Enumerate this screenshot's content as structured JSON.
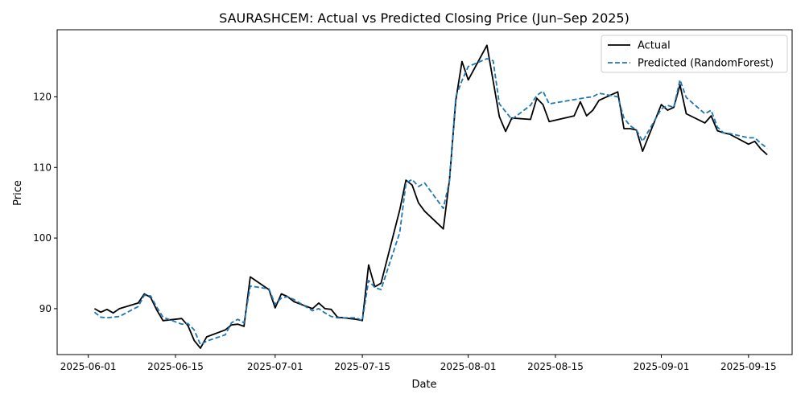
{
  "chart_data": {
    "type": "line",
    "title": "SAURASHCEM: Actual vs Predicted Closing Price (Jun–Sep 2025)",
    "xlabel": "Date",
    "ylabel": "Price",
    "xlim": [
      "2025-05-27",
      "2025-09-22"
    ],
    "ylim": [
      83.5,
      129.5
    ],
    "x_ticks": [
      "2025-06-01",
      "2025-06-15",
      "2025-07-01",
      "2025-07-15",
      "2025-08-01",
      "2025-08-15",
      "2025-09-01",
      "2025-09-15"
    ],
    "y_ticks": [
      90,
      100,
      110,
      120
    ],
    "grid": false,
    "legend": "top-right",
    "series": [
      {
        "name": "Actual",
        "color": "#000000",
        "style": "solid",
        "points": [
          [
            "2025-06-02",
            90.0
          ],
          [
            "2025-06-03",
            89.5
          ],
          [
            "2025-06-04",
            89.9
          ],
          [
            "2025-06-05",
            89.4
          ],
          [
            "2025-06-06",
            90.0
          ],
          [
            "2025-06-09",
            90.8
          ],
          [
            "2025-06-10",
            92.1
          ],
          [
            "2025-06-11",
            91.6
          ],
          [
            "2025-06-12",
            89.8
          ],
          [
            "2025-06-13",
            88.3
          ],
          [
            "2025-06-16",
            88.6
          ],
          [
            "2025-06-17",
            87.6
          ],
          [
            "2025-06-18",
            85.5
          ],
          [
            "2025-06-19",
            84.4
          ],
          [
            "2025-06-20",
            86.0
          ],
          [
            "2025-06-23",
            87.0
          ],
          [
            "2025-06-24",
            87.7
          ],
          [
            "2025-06-25",
            87.8
          ],
          [
            "2025-06-26",
            87.5
          ],
          [
            "2025-06-27",
            94.5
          ],
          [
            "2025-06-30",
            92.7
          ],
          [
            "2025-07-01",
            90.1
          ],
          [
            "2025-07-02",
            92.1
          ],
          [
            "2025-07-03",
            91.7
          ],
          [
            "2025-07-04",
            91.0
          ],
          [
            "2025-07-07",
            90.0
          ],
          [
            "2025-07-08",
            90.8
          ],
          [
            "2025-07-09",
            90.0
          ],
          [
            "2025-07-10",
            89.9
          ],
          [
            "2025-07-11",
            88.8
          ],
          [
            "2025-07-14",
            88.5
          ],
          [
            "2025-07-15",
            88.3
          ],
          [
            "2025-07-16",
            96.2
          ],
          [
            "2025-07-17",
            93.1
          ],
          [
            "2025-07-18",
            93.6
          ],
          [
            "2025-07-21",
            104.0
          ],
          [
            "2025-07-22",
            108.2
          ],
          [
            "2025-07-23",
            107.5
          ],
          [
            "2025-07-24",
            105.0
          ],
          [
            "2025-07-25",
            103.8
          ],
          [
            "2025-07-28",
            101.3
          ],
          [
            "2025-07-29",
            108.3
          ],
          [
            "2025-07-30",
            119.5
          ],
          [
            "2025-07-31",
            125.0
          ],
          [
            "2025-08-01",
            122.4
          ],
          [
            "2025-08-04",
            127.3
          ],
          [
            "2025-08-06",
            117.2
          ],
          [
            "2025-08-07",
            115.1
          ],
          [
            "2025-08-08",
            117.0
          ],
          [
            "2025-08-11",
            116.8
          ],
          [
            "2025-08-12",
            119.8
          ],
          [
            "2025-08-13",
            118.9
          ],
          [
            "2025-08-14",
            116.5
          ],
          [
            "2025-08-18",
            117.3
          ],
          [
            "2025-08-19",
            119.3
          ],
          [
            "2025-08-20",
            117.3
          ],
          [
            "2025-08-21",
            118.1
          ],
          [
            "2025-08-22",
            119.5
          ],
          [
            "2025-08-25",
            120.7
          ],
          [
            "2025-08-26",
            115.5
          ],
          [
            "2025-08-27",
            115.5
          ],
          [
            "2025-08-28",
            115.3
          ],
          [
            "2025-08-29",
            112.3
          ],
          [
            "2025-09-01",
            118.9
          ],
          [
            "2025-09-02",
            118.1
          ],
          [
            "2025-09-03",
            118.5
          ],
          [
            "2025-09-04",
            121.7
          ],
          [
            "2025-09-05",
            117.6
          ],
          [
            "2025-09-08",
            116.3
          ],
          [
            "2025-09-09",
            117.3
          ],
          [
            "2025-09-10",
            115.2
          ],
          [
            "2025-09-11",
            114.9
          ],
          [
            "2025-09-12",
            114.7
          ],
          [
            "2025-09-15",
            113.3
          ],
          [
            "2025-09-16",
            113.7
          ],
          [
            "2025-09-17",
            112.6
          ],
          [
            "2025-09-18",
            111.8
          ]
        ]
      },
      {
        "name": "Predicted (RandomForest)",
        "color": "#1f77b4",
        "style": "dashed",
        "points": [
          [
            "2025-06-02",
            89.5
          ],
          [
            "2025-06-03",
            88.8
          ],
          [
            "2025-06-04",
            88.7
          ],
          [
            "2025-06-05",
            88.8
          ],
          [
            "2025-06-06",
            88.9
          ],
          [
            "2025-06-09",
            90.3
          ],
          [
            "2025-06-10",
            91.9
          ],
          [
            "2025-06-11",
            91.8
          ],
          [
            "2025-06-12",
            90.2
          ],
          [
            "2025-06-13",
            88.8
          ],
          [
            "2025-06-16",
            87.8
          ],
          [
            "2025-06-17",
            87.9
          ],
          [
            "2025-06-18",
            87.0
          ],
          [
            "2025-06-19",
            84.9
          ],
          [
            "2025-06-20",
            85.4
          ],
          [
            "2025-06-23",
            86.3
          ],
          [
            "2025-06-24",
            88.0
          ],
          [
            "2025-06-25",
            88.5
          ],
          [
            "2025-06-26",
            88.0
          ],
          [
            "2025-06-27",
            93.2
          ],
          [
            "2025-06-30",
            92.8
          ],
          [
            "2025-07-01",
            90.6
          ],
          [
            "2025-07-02",
            91.5
          ],
          [
            "2025-07-03",
            91.7
          ],
          [
            "2025-07-04",
            91.3
          ],
          [
            "2025-07-07",
            89.7
          ],
          [
            "2025-07-08",
            90.0
          ],
          [
            "2025-07-09",
            89.4
          ],
          [
            "2025-07-10",
            88.9
          ],
          [
            "2025-07-11",
            88.7
          ],
          [
            "2025-07-14",
            88.7
          ],
          [
            "2025-07-15",
            88.3
          ],
          [
            "2025-07-16",
            94.0
          ],
          [
            "2025-07-17",
            93.0
          ],
          [
            "2025-07-18",
            92.7
          ],
          [
            "2025-07-21",
            100.8
          ],
          [
            "2025-07-22",
            107.8
          ],
          [
            "2025-07-23",
            108.3
          ],
          [
            "2025-07-24",
            107.3
          ],
          [
            "2025-07-25",
            107.8
          ],
          [
            "2025-07-28",
            104.2
          ],
          [
            "2025-07-29",
            108.1
          ],
          [
            "2025-07-30",
            120.0
          ],
          [
            "2025-07-31",
            122.3
          ],
          [
            "2025-08-01",
            124.3
          ],
          [
            "2025-08-04",
            125.4
          ],
          [
            "2025-08-05",
            125.1
          ],
          [
            "2025-08-06",
            119.0
          ],
          [
            "2025-08-08",
            116.8
          ],
          [
            "2025-08-11",
            118.8
          ],
          [
            "2025-08-12",
            120.2
          ],
          [
            "2025-08-13",
            120.8
          ],
          [
            "2025-08-14",
            119.0
          ],
          [
            "2025-08-18",
            119.6
          ],
          [
            "2025-08-20",
            119.9
          ],
          [
            "2025-08-21",
            120.0
          ],
          [
            "2025-08-22",
            120.5
          ],
          [
            "2025-08-25",
            120.0
          ],
          [
            "2025-08-26",
            117.0
          ],
          [
            "2025-08-27",
            115.9
          ],
          [
            "2025-08-28",
            115.3
          ],
          [
            "2025-08-29",
            113.7
          ],
          [
            "2025-09-01",
            118.3
          ],
          [
            "2025-09-02",
            118.8
          ],
          [
            "2025-09-03",
            118.5
          ],
          [
            "2025-09-04",
            122.4
          ],
          [
            "2025-09-05",
            119.9
          ],
          [
            "2025-09-08",
            117.6
          ],
          [
            "2025-09-09",
            118.1
          ],
          [
            "2025-09-10",
            115.7
          ],
          [
            "2025-09-11",
            114.9
          ],
          [
            "2025-09-12",
            114.8
          ],
          [
            "2025-09-15",
            114.2
          ],
          [
            "2025-09-16",
            114.2
          ],
          [
            "2025-09-17",
            113.4
          ],
          [
            "2025-09-18",
            112.7
          ]
        ]
      }
    ]
  }
}
